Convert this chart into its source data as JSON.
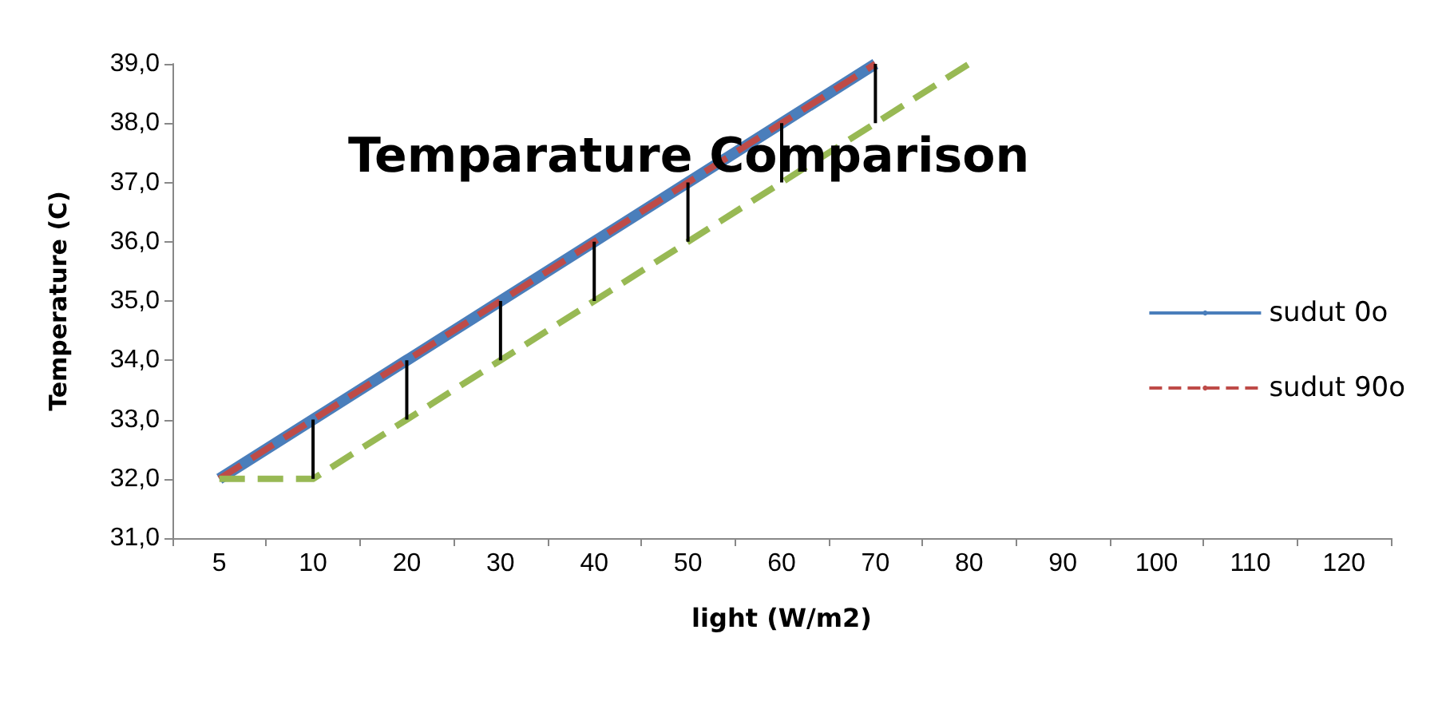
{
  "chart_data": {
    "type": "line",
    "title": "Temparature Comparison",
    "xlabel": "light (W/m2)",
    "ylabel": "Temperature (C)",
    "categories": [
      "5",
      "10",
      "20",
      "30",
      "40",
      "50",
      "60",
      "70",
      "80",
      "90",
      "100",
      "110",
      "120"
    ],
    "series": [
      {
        "name": "sudut 0o",
        "color": "#4a7ebb",
        "line_style": "solid",
        "values": [
          32,
          33,
          34,
          35,
          36,
          37,
          38,
          39,
          null,
          null,
          null,
          null,
          null
        ]
      },
      {
        "name": "sudut 90o",
        "color": "#be4b48",
        "line_style": "dashed",
        "values": [
          32,
          33,
          34,
          35,
          36,
          37,
          38,
          39,
          null,
          null,
          null,
          null,
          null
        ]
      },
      {
        "color": "#98b954",
        "line_style": "dashed",
        "values": [
          32,
          32,
          33,
          34,
          35,
          36,
          37,
          38,
          39,
          null,
          null,
          null,
          null
        ],
        "errors": [
          null,
          [
            32,
            33
          ],
          [
            33,
            34
          ],
          [
            34,
            35
          ],
          [
            35,
            36
          ],
          [
            36,
            37
          ],
          [
            37,
            38
          ],
          [
            38,
            39
          ],
          null,
          null,
          null,
          null,
          null
        ]
      }
    ],
    "ylim": [
      31,
      39
    ],
    "yticks": [
      {
        "value": 31,
        "label": "31,0"
      },
      {
        "value": 32,
        "label": "32,0"
      },
      {
        "value": 33,
        "label": "33,0"
      },
      {
        "value": 34,
        "label": "34,0"
      },
      {
        "value": 35,
        "label": "35,0"
      },
      {
        "value": 36,
        "label": "36,0"
      },
      {
        "value": 37,
        "label": "37,0"
      },
      {
        "value": 38,
        "label": "38,0"
      },
      {
        "value": 39,
        "label": "39,0"
      }
    ],
    "grid": false,
    "legend": "right",
    "marker": "none"
  }
}
